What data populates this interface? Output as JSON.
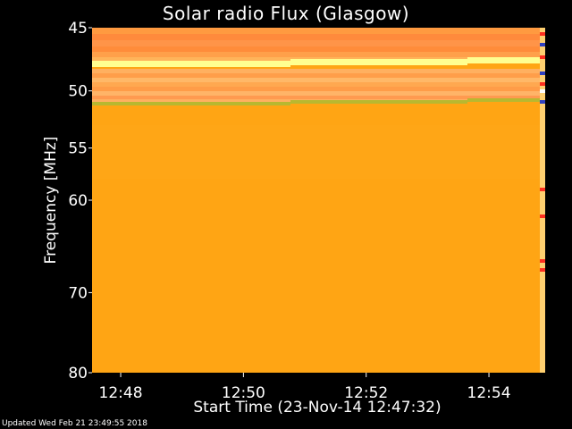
{
  "chart_data": {
    "type": "heatmap",
    "title": "Solar radio Flux (Glasgow)",
    "xlabel": "Start Time (23-Nov-14 12:47:32)",
    "ylabel": "Frequency [MHz]",
    "x_ticks": [
      "12:48",
      "12:50",
      "12:52",
      "12:54"
    ],
    "y_ticks": [
      "45",
      "50",
      "55",
      "60",
      "70",
      "80"
    ],
    "ylim": [
      45,
      80
    ],
    "y_scale": "log",
    "colors": {
      "background": "#000000",
      "base": "#FFA514",
      "band_hot": "#FF8A3C",
      "band_light": "#FFB45A",
      "bright_line": "#FFFF90",
      "green_line": "#B8B830",
      "edge_artifacts": "#FF3020"
    }
  },
  "footer": {
    "updated": "Updated Wed Feb 21 23:49:55 2018"
  }
}
